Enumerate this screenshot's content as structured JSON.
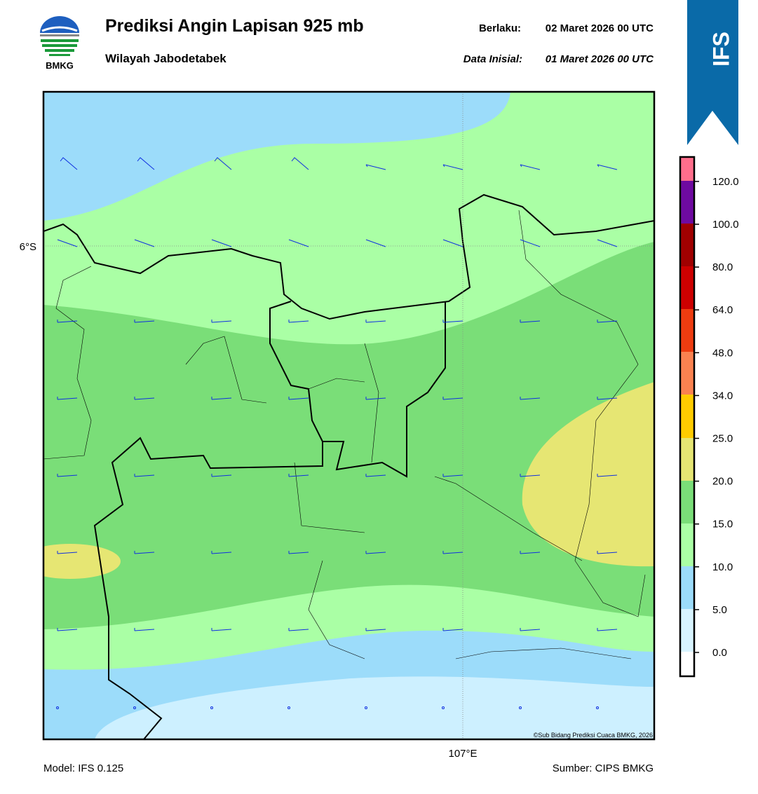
{
  "header": {
    "title": "Prediksi Angin Lapisan 925 mb",
    "subtitle": "Wilayah Jabodetabek",
    "valid_label": "Berlaku:",
    "valid_time": "02 Maret 2026 00 UTC",
    "init_label": "Data Inisial:",
    "init_time": "01 Maret 2026 00 UTC"
  },
  "logo": {
    "text": "BMKG"
  },
  "badge": {
    "text": "IFS"
  },
  "map": {
    "lat_label": "6°S",
    "lon_label": "107°E",
    "credit": "©Sub Bidang Prediksi Cuaca BMKG, 2026"
  },
  "colorbar": {
    "labels": [
      "0.0",
      "5.0",
      "10.0",
      "15.0",
      "20.0",
      "25.0",
      "34.0",
      "48.0",
      "64.0",
      "80.0",
      "100.0",
      "120.0"
    ]
  },
  "footer": {
    "model": "Model: IFS 0.125",
    "source": "Sumber: CIPS BMKG"
  }
}
